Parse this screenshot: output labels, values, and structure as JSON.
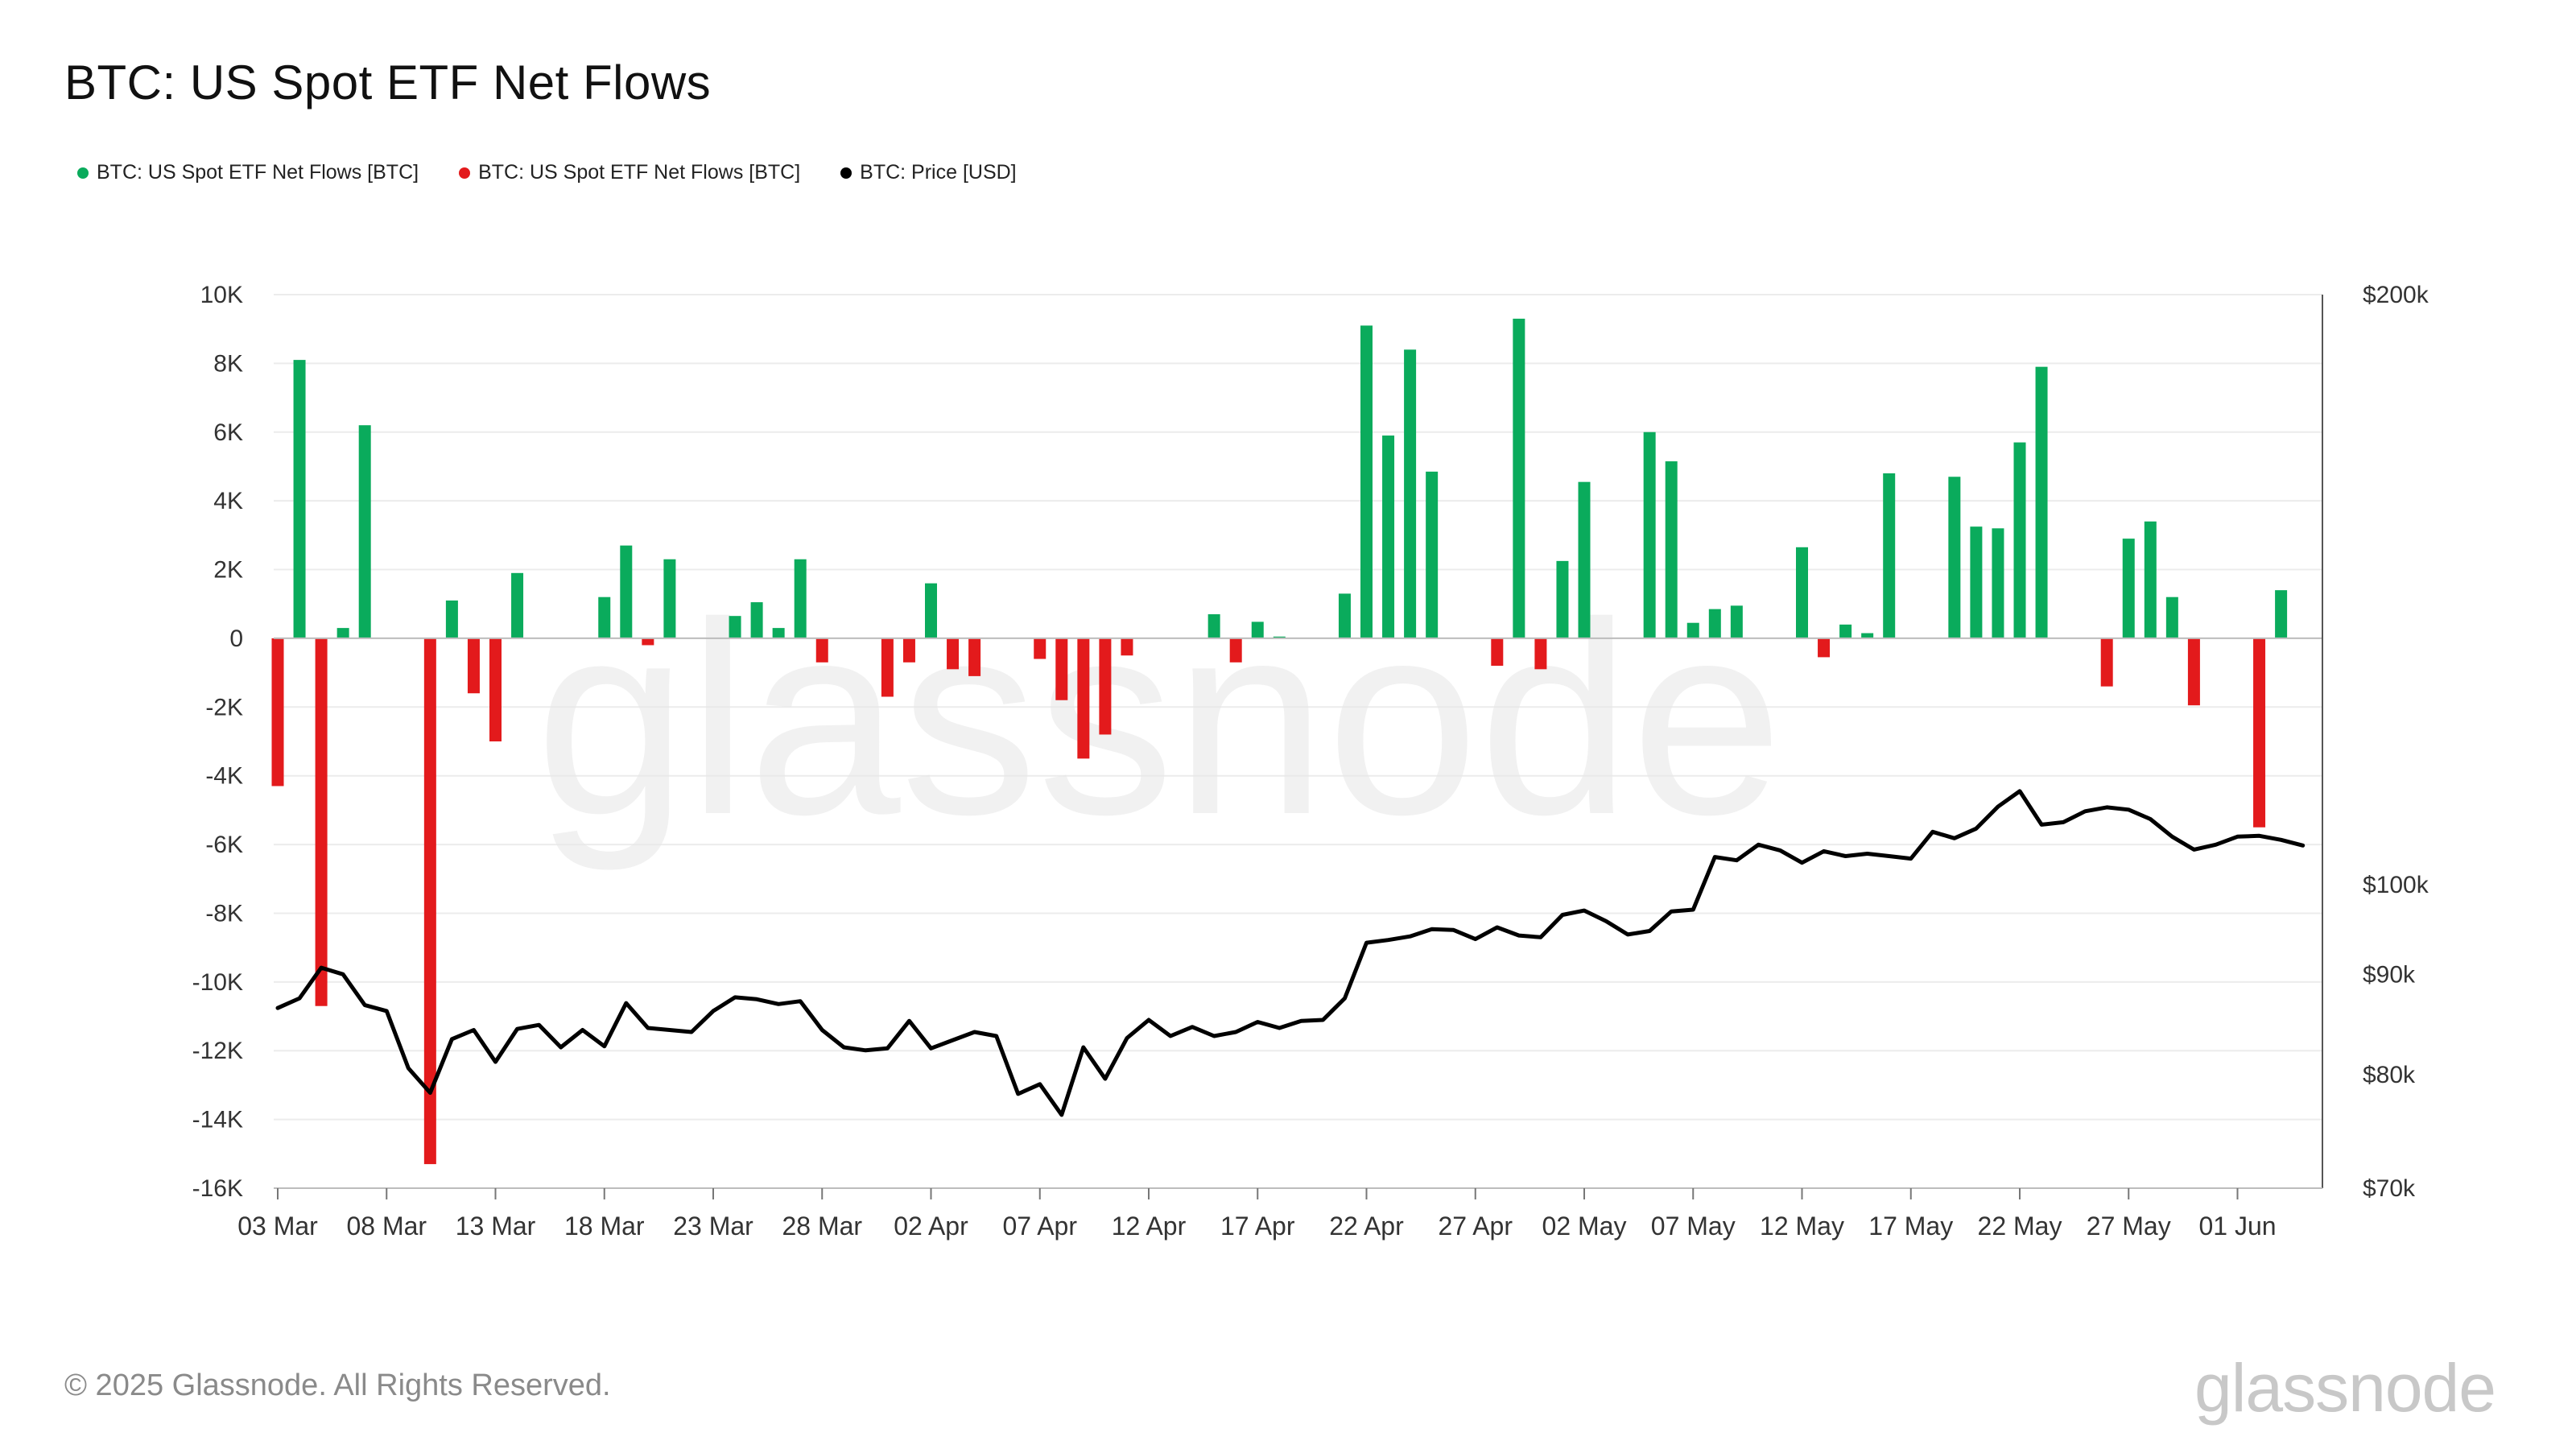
{
  "title": "BTC: US Spot ETF Net Flows",
  "legend": [
    {
      "label": "BTC: US Spot ETF Net Flows [BTC]",
      "color": "#0aab5c"
    },
    {
      "label": "BTC: US Spot ETF Net Flows [BTC]",
      "color": "#e31a1c"
    },
    {
      "label": "BTC: Price [USD]",
      "color": "#000000"
    }
  ],
  "footer": "© 2025 Glassnode. All Rights Reserved.",
  "watermark": "glassnode",
  "logo": "glassnode",
  "colors": {
    "positive": "#0aab5c",
    "negative": "#e31a1c",
    "price": "#000000",
    "grid": "#ececec"
  },
  "chart_data": {
    "type": "bar",
    "title": "BTC: US Spot ETF Net Flows",
    "left_axis": {
      "ylim": [
        -16000,
        10000
      ],
      "ticks": [
        10000,
        8000,
        6000,
        4000,
        2000,
        0,
        -2000,
        -4000,
        -6000,
        -8000,
        -10000,
        -12000,
        -14000,
        -16000
      ],
      "tick_labels": [
        "10K",
        "8K",
        "6K",
        "4K",
        "2K",
        "0",
        "-2K",
        "-4K",
        "-6K",
        "-8K",
        "-10K",
        "-12K",
        "-14K",
        "-16K"
      ]
    },
    "right_axis": {
      "scale": "log",
      "ylim": [
        70000,
        200000
      ],
      "ticks": [
        200000,
        100000,
        90000,
        80000,
        70000
      ],
      "tick_labels": [
        "$200k",
        "$100k",
        "$90k",
        "$80k",
        "$70k"
      ]
    },
    "x_start": "2025-03-03",
    "x_days": 94,
    "x_ticks": [
      {
        "day": 0,
        "label": "03 Mar"
      },
      {
        "day": 5,
        "label": "08 Mar"
      },
      {
        "day": 10,
        "label": "13 Mar"
      },
      {
        "day": 15,
        "label": "18 Mar"
      },
      {
        "day": 20,
        "label": "23 Mar"
      },
      {
        "day": 25,
        "label": "28 Mar"
      },
      {
        "day": 30,
        "label": "02 Apr"
      },
      {
        "day": 35,
        "label": "07 Apr"
      },
      {
        "day": 40,
        "label": "12 Apr"
      },
      {
        "day": 45,
        "label": "17 Apr"
      },
      {
        "day": 50,
        "label": "22 Apr"
      },
      {
        "day": 55,
        "label": "27 Apr"
      },
      {
        "day": 60,
        "label": "02 May"
      },
      {
        "day": 65,
        "label": "07 May"
      },
      {
        "day": 70,
        "label": "12 May"
      },
      {
        "day": 75,
        "label": "17 May"
      },
      {
        "day": 80,
        "label": "22 May"
      },
      {
        "day": 85,
        "label": "27 May"
      },
      {
        "day": 90,
        "label": "01 Jun"
      }
    ],
    "series": [
      {
        "name": "BTC: US Spot ETF Net Flows [BTC]",
        "type": "bar",
        "points": [
          [
            0,
            -4300
          ],
          [
            1,
            8100
          ],
          [
            2,
            -10700
          ],
          [
            3,
            300
          ],
          [
            4,
            6200
          ],
          [
            7,
            -15300
          ],
          [
            8,
            1100
          ],
          [
            9,
            -1600
          ],
          [
            10,
            -3000
          ],
          [
            11,
            1900
          ],
          [
            15,
            1200
          ],
          [
            16,
            2700
          ],
          [
            17,
            -200
          ],
          [
            18,
            2300
          ],
          [
            21,
            650
          ],
          [
            22,
            1050
          ],
          [
            23,
            300
          ],
          [
            24,
            2300
          ],
          [
            25,
            -700
          ],
          [
            28,
            -1700
          ],
          [
            29,
            -700
          ],
          [
            30,
            1600
          ],
          [
            31,
            -900
          ],
          [
            32,
            -1100
          ],
          [
            35,
            -600
          ],
          [
            36,
            -1800
          ],
          [
            37,
            -3500
          ],
          [
            38,
            -2800
          ],
          [
            39,
            -500
          ],
          [
            43,
            700
          ],
          [
            44,
            -700
          ],
          [
            45,
            480
          ],
          [
            46,
            50
          ],
          [
            49,
            1300
          ],
          [
            50,
            9100
          ],
          [
            51,
            5900
          ],
          [
            52,
            8400
          ],
          [
            53,
            4850
          ],
          [
            56,
            -800
          ],
          [
            57,
            9300
          ],
          [
            58,
            -900
          ],
          [
            59,
            2250
          ],
          [
            60,
            4550
          ],
          [
            63,
            6000
          ],
          [
            64,
            5150
          ],
          [
            65,
            450
          ],
          [
            66,
            850
          ],
          [
            67,
            950
          ],
          [
            70,
            2650
          ],
          [
            71,
            -550
          ],
          [
            72,
            400
          ],
          [
            73,
            150
          ],
          [
            74,
            4800
          ],
          [
            77,
            4700
          ],
          [
            78,
            3250
          ],
          [
            79,
            3200
          ],
          [
            80,
            5700
          ],
          [
            81,
            7900
          ],
          [
            84,
            -1400
          ],
          [
            85,
            2900
          ],
          [
            86,
            3400
          ],
          [
            87,
            1200
          ],
          [
            88,
            -1950
          ],
          [
            91,
            -5500
          ],
          [
            92,
            1400
          ]
        ]
      },
      {
        "name": "BTC: Price [USD]",
        "type": "line",
        "points": [
          [
            0,
            86500
          ],
          [
            1,
            87500
          ],
          [
            2,
            90700
          ],
          [
            3,
            90000
          ],
          [
            4,
            86800
          ],
          [
            5,
            86200
          ],
          [
            6,
            80600
          ],
          [
            7,
            78300
          ],
          [
            8,
            83400
          ],
          [
            9,
            84300
          ],
          [
            10,
            81200
          ],
          [
            11,
            84400
          ],
          [
            12,
            84800
          ],
          [
            13,
            82600
          ],
          [
            14,
            84300
          ],
          [
            15,
            82700
          ],
          [
            16,
            87000
          ],
          [
            17,
            84500
          ],
          [
            18,
            84300
          ],
          [
            19,
            84100
          ],
          [
            20,
            86200
          ],
          [
            21,
            87600
          ],
          [
            22,
            87400
          ],
          [
            23,
            86900
          ],
          [
            24,
            87200
          ],
          [
            25,
            84300
          ],
          [
            26,
            82600
          ],
          [
            27,
            82300
          ],
          [
            28,
            82500
          ],
          [
            29,
            85200
          ],
          [
            30,
            82500
          ],
          [
            31,
            83300
          ],
          [
            32,
            84100
          ],
          [
            33,
            83700
          ],
          [
            34,
            78200
          ],
          [
            35,
            79100
          ],
          [
            36,
            76300
          ],
          [
            37,
            82600
          ],
          [
            38,
            79600
          ],
          [
            39,
            83500
          ],
          [
            40,
            85300
          ],
          [
            41,
            83700
          ],
          [
            42,
            84600
          ],
          [
            43,
            83700
          ],
          [
            44,
            84100
          ],
          [
            45,
            85100
          ],
          [
            46,
            84500
          ],
          [
            47,
            85200
          ],
          [
            48,
            85300
          ],
          [
            49,
            87500
          ],
          [
            50,
            93400
          ],
          [
            51,
            93700
          ],
          [
            52,
            94100
          ],
          [
            53,
            94900
          ],
          [
            54,
            94800
          ],
          [
            55,
            93800
          ],
          [
            56,
            95100
          ],
          [
            57,
            94200
          ],
          [
            58,
            94000
          ],
          [
            59,
            96500
          ],
          [
            60,
            97000
          ],
          [
            61,
            95800
          ],
          [
            62,
            94300
          ],
          [
            63,
            94700
          ],
          [
            64,
            96900
          ],
          [
            65,
            97100
          ],
          [
            66,
            103300
          ],
          [
            67,
            102900
          ],
          [
            68,
            104800
          ],
          [
            69,
            104100
          ],
          [
            70,
            102600
          ],
          [
            71,
            104000
          ],
          [
            72,
            103400
          ],
          [
            73,
            103700
          ],
          [
            74,
            103400
          ],
          [
            75,
            103100
          ],
          [
            76,
            106400
          ],
          [
            77,
            105600
          ],
          [
            78,
            106800
          ],
          [
            79,
            109600
          ],
          [
            80,
            111600
          ],
          [
            81,
            107300
          ],
          [
            82,
            107600
          ],
          [
            83,
            109000
          ],
          [
            84,
            109500
          ],
          [
            85,
            109200
          ],
          [
            86,
            108000
          ],
          [
            87,
            105800
          ],
          [
            88,
            104200
          ],
          [
            89,
            104800
          ],
          [
            90,
            105800
          ],
          [
            91,
            105900
          ],
          [
            92,
            105400
          ],
          [
            93,
            104700
          ]
        ]
      }
    ],
    "grid": true,
    "legend_position": "top-left"
  }
}
